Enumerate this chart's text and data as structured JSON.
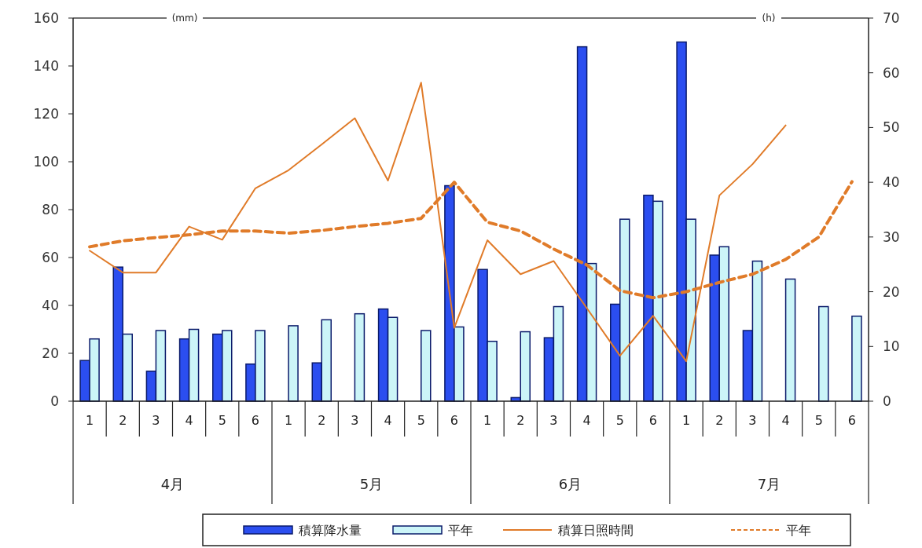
{
  "chart_data": {
    "type": "bar",
    "categories": [
      "1",
      "2",
      "3",
      "4",
      "5",
      "6",
      "1",
      "2",
      "3",
      "4",
      "5",
      "6",
      "1",
      "2",
      "3",
      "4",
      "5",
      "6",
      "1",
      "2",
      "3",
      "4",
      "5",
      "6"
    ],
    "annotations": [
      "4月",
      "5月",
      "6月",
      "7月"
    ],
    "ylabel": "(mm)",
    "y2label": "(h)",
    "ylim": [
      0,
      160
    ],
    "yticks": [
      0,
      20,
      40,
      60,
      80,
      100,
      120,
      140,
      160
    ],
    "y2lim": [
      0,
      70
    ],
    "y2ticks": [
      0,
      10,
      20,
      30,
      40,
      50,
      60,
      70
    ],
    "legend": "bottom",
    "grid": false,
    "series": [
      {
        "name": "積算降水量",
        "color": "#2b4ef0",
        "values": [
          17,
          56,
          12.5,
          26,
          28,
          15.5,
          null,
          16,
          null,
          38.5,
          null,
          90,
          55,
          1.5,
          26.5,
          148,
          40.5,
          86,
          150,
          61,
          29.5,
          null,
          null,
          null
        ]
      },
      {
        "name": "平年",
        "color": "#ccf5f8",
        "values": [
          26,
          28,
          29.5,
          30,
          29.5,
          29.5,
          31.5,
          34,
          36.5,
          35,
          29.5,
          31,
          25,
          29,
          39.5,
          57.5,
          76,
          83.5,
          76,
          64.5,
          58.5,
          51,
          39.5,
          35.5
        ]
      },
      {
        "name": "積算日照時間",
        "type": "line",
        "axis": "y2",
        "line_style": "solid",
        "color": "#e07b29",
        "values": [
          27.5,
          23.5,
          23.5,
          31.9,
          29.5,
          38.9,
          42.2,
          46.9,
          51.7,
          40.3,
          58.2,
          13.4,
          29.4,
          23.2,
          25.6,
          17,
          8.3,
          15.6,
          7.3,
          37.6,
          43.3,
          50.4,
          null,
          null
        ]
      },
      {
        "name": "平年",
        "type": "line",
        "axis": "y2",
        "line_style": "dashed",
        "color": "#e07b29",
        "values": [
          28.2,
          29.3,
          29.9,
          30.4,
          31.1,
          31.1,
          30.7,
          31.2,
          31.9,
          32.5,
          33.4,
          40,
          32.7,
          31.1,
          27.8,
          24.9,
          20.2,
          18.9,
          20,
          21.7,
          23.2,
          25.9,
          30,
          40.1
        ]
      }
    ]
  }
}
